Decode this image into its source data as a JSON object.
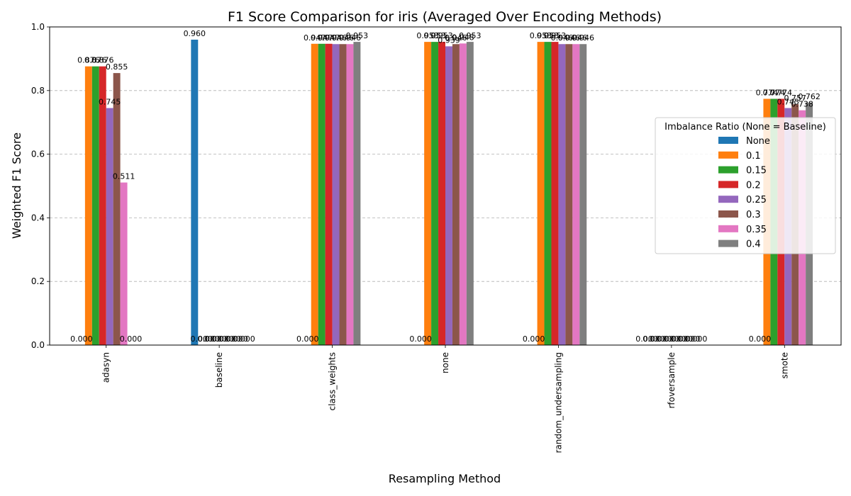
{
  "chart_data": {
    "type": "bar",
    "title": "F1 Score Comparison for iris (Averaged Over Encoding Methods)",
    "xlabel": "Resampling Method",
    "ylabel": "Weighted F1 Score",
    "ylim": [
      0,
      1.0
    ],
    "yticks": [
      "0.0",
      "0.2",
      "0.4",
      "0.6",
      "0.8",
      "1.0"
    ],
    "grid": "y-dashed",
    "legend_title": "Imbalance Ratio (None = Baseline)",
    "legend_position": "center-right",
    "categories": [
      "adasyn",
      "baseline",
      "class_weights",
      "none",
      "random_undersampling",
      "rfoversample",
      "smote"
    ],
    "series": [
      {
        "name": "None",
        "color": "#1f77b4",
        "values": [
          0,
          0.96,
          0,
          0,
          0,
          0,
          0
        ]
      },
      {
        "name": "0.1",
        "color": "#ff7f0e",
        "values": [
          0.876,
          0,
          0.947,
          0.953,
          0.953,
          0,
          0.774
        ]
      },
      {
        "name": "0.15",
        "color": "#2ca02c",
        "values": [
          0.876,
          0,
          0.947,
          0.953,
          0.953,
          0,
          0.774
        ]
      },
      {
        "name": "0.2",
        "color": "#d62728",
        "values": [
          0.876,
          0,
          0.947,
          0.953,
          0.953,
          0,
          0.774
        ]
      },
      {
        "name": "0.25",
        "color": "#9467bd",
        "values": [
          0.745,
          0,
          0.946,
          0.939,
          0.946,
          0,
          0.745
        ]
      },
      {
        "name": "0.3",
        "color": "#8c564b",
        "values": [
          0.855,
          0,
          0.946,
          0.946,
          0.946,
          0,
          0.757
        ]
      },
      {
        "name": "0.35",
        "color": "#e377c2",
        "values": [
          0.511,
          0,
          0.946,
          0.948,
          0.946,
          0,
          0.738
        ]
      },
      {
        "name": "0.4",
        "color": "#7f7f7f",
        "values": [
          0,
          0,
          0.953,
          0.953,
          0.946,
          0,
          0.762
        ]
      }
    ],
    "data_labels": [
      [
        "0.000",
        "0.876",
        "0.876",
        "0.876",
        "0.745",
        "0.855",
        "0.511",
        "0.000"
      ],
      [
        "0.960",
        "0.000",
        "0.000",
        "0.000",
        "0.000",
        "0.000",
        "0.000",
        "0.000"
      ],
      [
        "0.000",
        "0.947",
        "0.947",
        "0.947",
        "0.946",
        "0.946",
        "0.946",
        "0.953"
      ],
      [
        "0.000",
        "0.953",
        "0.953",
        "0.953",
        "0.939",
        "0.946",
        "0.948",
        "0.953"
      ],
      [
        "0.000",
        "0.953",
        "0.953",
        "0.953",
        "0.946",
        "0.946",
        "0.946",
        "0.946"
      ],
      [
        "0.000",
        "0.000",
        "0.000",
        "0.000",
        "0.000",
        "0.000",
        "0.000",
        "0.000"
      ],
      [
        "0.000",
        "0.774",
        "0.774",
        "0.774",
        "0.745",
        "0.757",
        "0.738",
        "0.762"
      ]
    ]
  }
}
